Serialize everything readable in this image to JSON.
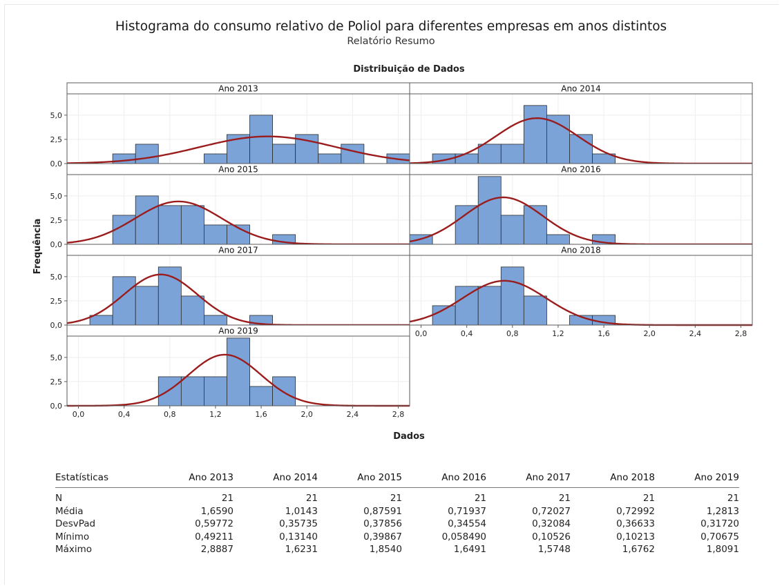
{
  "title": "Histograma do consumo relativo de Poliol para diferentes empresas em anos distintos",
  "subtitle": "Relatório Resumo",
  "chart_data": {
    "type": "bar",
    "title": "Distribuição de Dados",
    "xlabel": "Dados",
    "ylabel": "Frequência",
    "bin_width": 0.2,
    "xlim": [
      -0.1,
      2.9
    ],
    "ylim": [
      0,
      7.2
    ],
    "x_ticks": [
      0.0,
      0.4,
      0.8,
      1.2,
      1.6,
      2.0,
      2.4,
      2.8
    ],
    "x_tick_labels": [
      "0,0",
      "0,4",
      "0,8",
      "1,2",
      "1,6",
      "2,0",
      "2,4",
      "2,8"
    ],
    "y_ticks": [
      0.0,
      2.5,
      5.0
    ],
    "y_tick_labels": [
      "0,0",
      "2,5",
      "5,0"
    ],
    "colors": {
      "bar_fill": "#7ba3d8",
      "bar_stroke": "#2b2b2b",
      "curve": "#9b1c1c",
      "grid": "#eeeeee",
      "axis": "#5a5a5a"
    },
    "panels": [
      {
        "name": "Ano 2013",
        "mean": 1.659,
        "sd": 0.59772,
        "bins": [
          {
            "x0": 0.3,
            "count": 1
          },
          {
            "x0": 0.5,
            "count": 2
          },
          {
            "x0": 1.1,
            "count": 1
          },
          {
            "x0": 1.3,
            "count": 3
          },
          {
            "x0": 1.5,
            "count": 5
          },
          {
            "x0": 1.7,
            "count": 2
          },
          {
            "x0": 1.9,
            "count": 3
          },
          {
            "x0": 2.1,
            "count": 1
          },
          {
            "x0": 2.3,
            "count": 2
          },
          {
            "x0": 2.7,
            "count": 1
          }
        ]
      },
      {
        "name": "Ano 2014",
        "mean": 1.0143,
        "sd": 0.35735,
        "bins": [
          {
            "x0": 0.1,
            "count": 1
          },
          {
            "x0": 0.3,
            "count": 1
          },
          {
            "x0": 0.5,
            "count": 2
          },
          {
            "x0": 0.7,
            "count": 2
          },
          {
            "x0": 0.9,
            "count": 6
          },
          {
            "x0": 1.1,
            "count": 5
          },
          {
            "x0": 1.3,
            "count": 3
          },
          {
            "x0": 1.5,
            "count": 1
          }
        ]
      },
      {
        "name": "Ano 2015",
        "mean": 0.87591,
        "sd": 0.37856,
        "bins": [
          {
            "x0": 0.3,
            "count": 3
          },
          {
            "x0": 0.5,
            "count": 5
          },
          {
            "x0": 0.7,
            "count": 4
          },
          {
            "x0": 0.9,
            "count": 4
          },
          {
            "x0": 1.1,
            "count": 2
          },
          {
            "x0": 1.3,
            "count": 2
          },
          {
            "x0": 1.7,
            "count": 1
          }
        ]
      },
      {
        "name": "Ano 2016",
        "mean": 0.71937,
        "sd": 0.34554,
        "bins": [
          {
            "x0": -0.1,
            "count": 1
          },
          {
            "x0": 0.3,
            "count": 4
          },
          {
            "x0": 0.5,
            "count": 7
          },
          {
            "x0": 0.7,
            "count": 3
          },
          {
            "x0": 0.9,
            "count": 4
          },
          {
            "x0": 1.1,
            "count": 1
          },
          {
            "x0": 1.5,
            "count": 1
          }
        ]
      },
      {
        "name": "Ano 2017",
        "mean": 0.72027,
        "sd": 0.32084,
        "bins": [
          {
            "x0": 0.1,
            "count": 1
          },
          {
            "x0": 0.3,
            "count": 5
          },
          {
            "x0": 0.5,
            "count": 4
          },
          {
            "x0": 0.7,
            "count": 6
          },
          {
            "x0": 0.9,
            "count": 3
          },
          {
            "x0": 1.1,
            "count": 1
          },
          {
            "x0": 1.5,
            "count": 1
          }
        ]
      },
      {
        "name": "Ano 2018",
        "mean": 0.72992,
        "sd": 0.36633,
        "bins": [
          {
            "x0": 0.1,
            "count": 2
          },
          {
            "x0": 0.3,
            "count": 4
          },
          {
            "x0": 0.5,
            "count": 4
          },
          {
            "x0": 0.7,
            "count": 6
          },
          {
            "x0": 0.9,
            "count": 3
          },
          {
            "x0": 1.3,
            "count": 1
          },
          {
            "x0": 1.5,
            "count": 1
          }
        ]
      },
      {
        "name": "Ano 2019",
        "mean": 1.2813,
        "sd": 0.3172,
        "bins": [
          {
            "x0": 0.7,
            "count": 3
          },
          {
            "x0": 0.9,
            "count": 3
          },
          {
            "x0": 1.1,
            "count": 3
          },
          {
            "x0": 1.3,
            "count": 7
          },
          {
            "x0": 1.5,
            "count": 2
          },
          {
            "x0": 1.7,
            "count": 3
          }
        ]
      }
    ]
  },
  "stats_table": {
    "columns": [
      "Estatísticas",
      "Ano 2013",
      "Ano 2014",
      "Ano 2015",
      "Ano 2016",
      "Ano 2017",
      "Ano 2018",
      "Ano 2019"
    ],
    "rows": [
      [
        "N",
        "21",
        "21",
        "21",
        "21",
        "21",
        "21",
        "21"
      ],
      [
        "Média",
        "1,6590",
        "1,0143",
        "0,87591",
        "0,71937",
        "0,72027",
        "0,72992",
        "1,2813"
      ],
      [
        "DesvPad",
        "0,59772",
        "0,35735",
        "0,37856",
        "0,34554",
        "0,32084",
        "0,36633",
        "0,31720"
      ],
      [
        "Mínimo",
        "0,49211",
        "0,13140",
        "0,39867",
        "0,058490",
        "0,10526",
        "0,10213",
        "0,70675"
      ],
      [
        "Máximo",
        "2,8887",
        "1,6231",
        "1,8540",
        "1,6491",
        "1,5748",
        "1,6762",
        "1,8091"
      ]
    ]
  }
}
